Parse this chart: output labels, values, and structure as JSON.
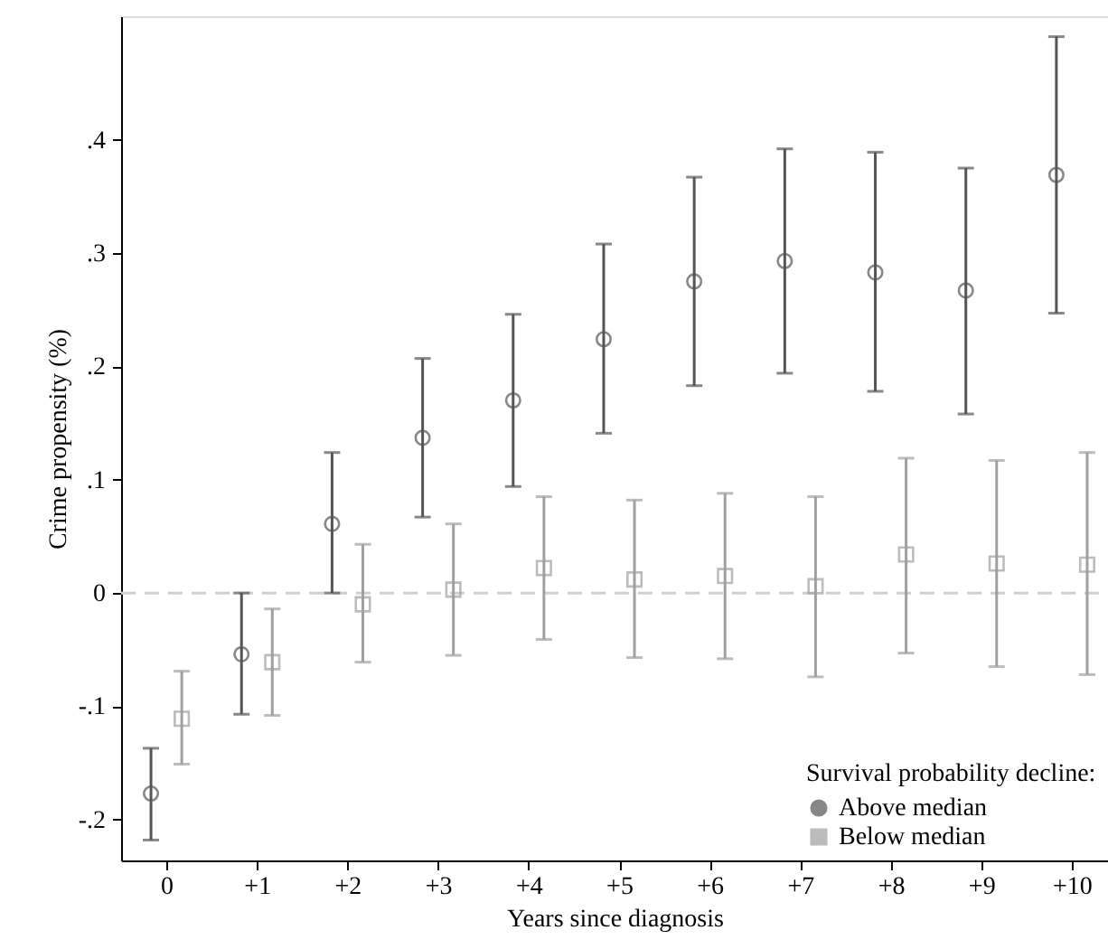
{
  "chart_data": {
    "type": "scatter",
    "xlabel": "Years since diagnosis",
    "ylabel": "Crime propensity (%)",
    "legend_title": "Survival probability decline:",
    "series": [
      {
        "name": "Above median",
        "color": "#555555",
        "marker": "circle",
        "x": [
          -0.17,
          0.83,
          1.83,
          2.83,
          3.83,
          4.83,
          5.83,
          6.83,
          7.83,
          8.83,
          9.83
        ],
        "values": [
          -0.177,
          -0.054,
          0.061,
          0.137,
          0.17,
          0.224,
          0.275,
          0.293,
          0.283,
          0.267,
          0.369
        ],
        "errors": [
          [
            -0.218,
            -0.137
          ],
          [
            -0.107,
            0.0
          ],
          [
            0.0,
            0.124
          ],
          [
            0.067,
            0.207
          ],
          [
            0.094,
            0.246
          ],
          [
            0.141,
            0.308
          ],
          [
            0.183,
            0.367
          ],
          [
            0.194,
            0.392
          ],
          [
            0.178,
            0.389
          ],
          [
            0.158,
            0.375
          ],
          [
            0.247,
            0.491
          ]
        ]
      },
      {
        "name": "Below median",
        "color": "#a0a0a0",
        "marker": "square",
        "x": [
          0.17,
          1.17,
          2.17,
          3.17,
          4.17,
          5.17,
          6.17,
          7.17,
          8.17,
          9.17,
          10.17
        ],
        "values": [
          -0.111,
          -0.061,
          -0.01,
          0.003,
          0.022,
          0.012,
          0.015,
          0.006,
          0.034,
          0.026,
          0.025
        ],
        "errors": [
          [
            -0.151,
            -0.069
          ],
          [
            -0.108,
            -0.014
          ],
          [
            -0.061,
            0.043
          ],
          [
            -0.055,
            0.061
          ],
          [
            -0.041,
            0.085
          ],
          [
            -0.057,
            0.082
          ],
          [
            -0.058,
            0.088
          ],
          [
            -0.074,
            0.085
          ],
          [
            -0.053,
            0.119
          ],
          [
            -0.065,
            0.117
          ],
          [
            -0.072,
            0.124
          ]
        ]
      }
    ],
    "xlim": [
      -0.5,
      10.4
    ],
    "xticks": [
      0,
      {
        "value": 1,
        "label": "+1"
      },
      {
        "value": 2,
        "label": "+2"
      },
      {
        "value": 3,
        "label": "+3"
      },
      {
        "value": 4,
        "label": "+4"
      },
      {
        "value": 5,
        "label": "+5"
      },
      {
        "value": 6,
        "label": "+6"
      },
      {
        "value": 7,
        "label": "+7"
      },
      {
        "value": 8,
        "label": "+8"
      },
      {
        "value": 9,
        "label": "+9"
      },
      {
        "value": 10,
        "label": "+10"
      }
    ],
    "ylim": [
      -0.236,
      0.509
    ],
    "yticks": [
      {
        "value": -0.2,
        "label": "-.2"
      },
      {
        "value": -0.1,
        "label": "-.1"
      },
      0,
      {
        "value": 0.1,
        "label": ".1"
      },
      {
        "value": 0.2,
        "label": ".2"
      },
      {
        "value": 0.3,
        "label": ".3"
      },
      {
        "value": 0.4,
        "label": ".4"
      }
    ],
    "ref_lines": [
      {
        "axis": "y",
        "value": 0,
        "color": "#d0d0d0",
        "line_style": "dashed"
      }
    ],
    "grid": false,
    "legend": "bottom right"
  }
}
